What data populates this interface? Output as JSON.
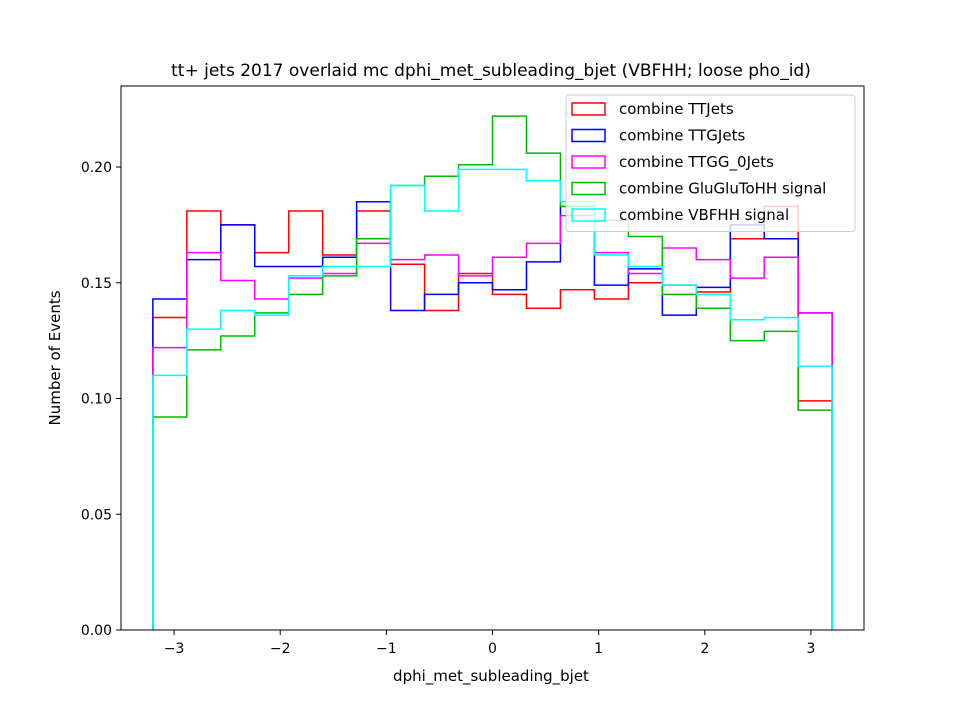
{
  "chart_data": {
    "type": "step-histogram",
    "title": "tt+ jets 2017 overlaid mc dphi_met_subleading_bjet (VBFHH; loose pho_id)",
    "xlabel": "dphi_met_subleading_bjet",
    "ylabel": "Number of Events",
    "xlim": [
      -3.5,
      3.5
    ],
    "ylim": [
      0,
      0.235
    ],
    "xticks": [
      -3,
      -2,
      -1,
      0,
      1,
      2,
      3
    ],
    "xtick_labels": [
      "−3",
      "−2",
      "−1",
      "0",
      "1",
      "2",
      "3"
    ],
    "yticks": [
      0.0,
      0.05,
      0.1,
      0.15,
      0.2
    ],
    "ytick_labels": [
      "0.00",
      "0.05",
      "0.10",
      "0.15",
      "0.20"
    ],
    "bin_edges": [
      -3.2,
      -2.88,
      -2.56,
      -2.24,
      -1.92,
      -1.6,
      -1.28,
      -0.96,
      -0.64,
      -0.32,
      0.0,
      0.32,
      0.64,
      0.96,
      1.28,
      1.6,
      1.92,
      2.24,
      2.56,
      2.88,
      3.2
    ],
    "legend_position": "top-right",
    "series": [
      {
        "name": "combine TTJets",
        "color": "#ff0000",
        "values": [
          0.135,
          0.181,
          0.175,
          0.163,
          0.181,
          0.162,
          0.181,
          0.158,
          0.138,
          0.154,
          0.145,
          0.139,
          0.147,
          0.143,
          0.15,
          0.149,
          0.146,
          0.169,
          0.183,
          0.099
        ]
      },
      {
        "name": "combine TTGJets",
        "color": "#0000ff",
        "values": [
          0.143,
          0.16,
          0.175,
          0.157,
          0.157,
          0.161,
          0.185,
          0.138,
          0.145,
          0.15,
          0.147,
          0.159,
          0.183,
          0.149,
          0.156,
          0.136,
          0.148,
          0.175,
          0.169,
          0.137
        ]
      },
      {
        "name": "combine TTGG_0Jets",
        "color": "#ff00ff",
        "values": [
          0.122,
          0.163,
          0.151,
          0.143,
          0.152,
          0.154,
          0.167,
          0.16,
          0.162,
          0.153,
          0.161,
          0.167,
          0.179,
          0.163,
          0.154,
          0.165,
          0.16,
          0.152,
          0.161,
          0.137
        ]
      },
      {
        "name": "combine GluGluToHH signal",
        "color": "#00bb00",
        "values": [
          0.092,
          0.121,
          0.127,
          0.137,
          0.145,
          0.153,
          0.169,
          0.192,
          0.196,
          0.201,
          0.222,
          0.206,
          0.183,
          0.177,
          0.17,
          0.145,
          0.139,
          0.125,
          0.129,
          0.095
        ]
      },
      {
        "name": "combine VBFHH signal",
        "color": "#00ffff",
        "values": [
          0.11,
          0.13,
          0.138,
          0.136,
          0.153,
          0.157,
          0.157,
          0.192,
          0.181,
          0.199,
          0.199,
          0.194,
          0.185,
          0.162,
          0.157,
          0.149,
          0.145,
          0.134,
          0.135,
          0.114
        ]
      }
    ]
  }
}
